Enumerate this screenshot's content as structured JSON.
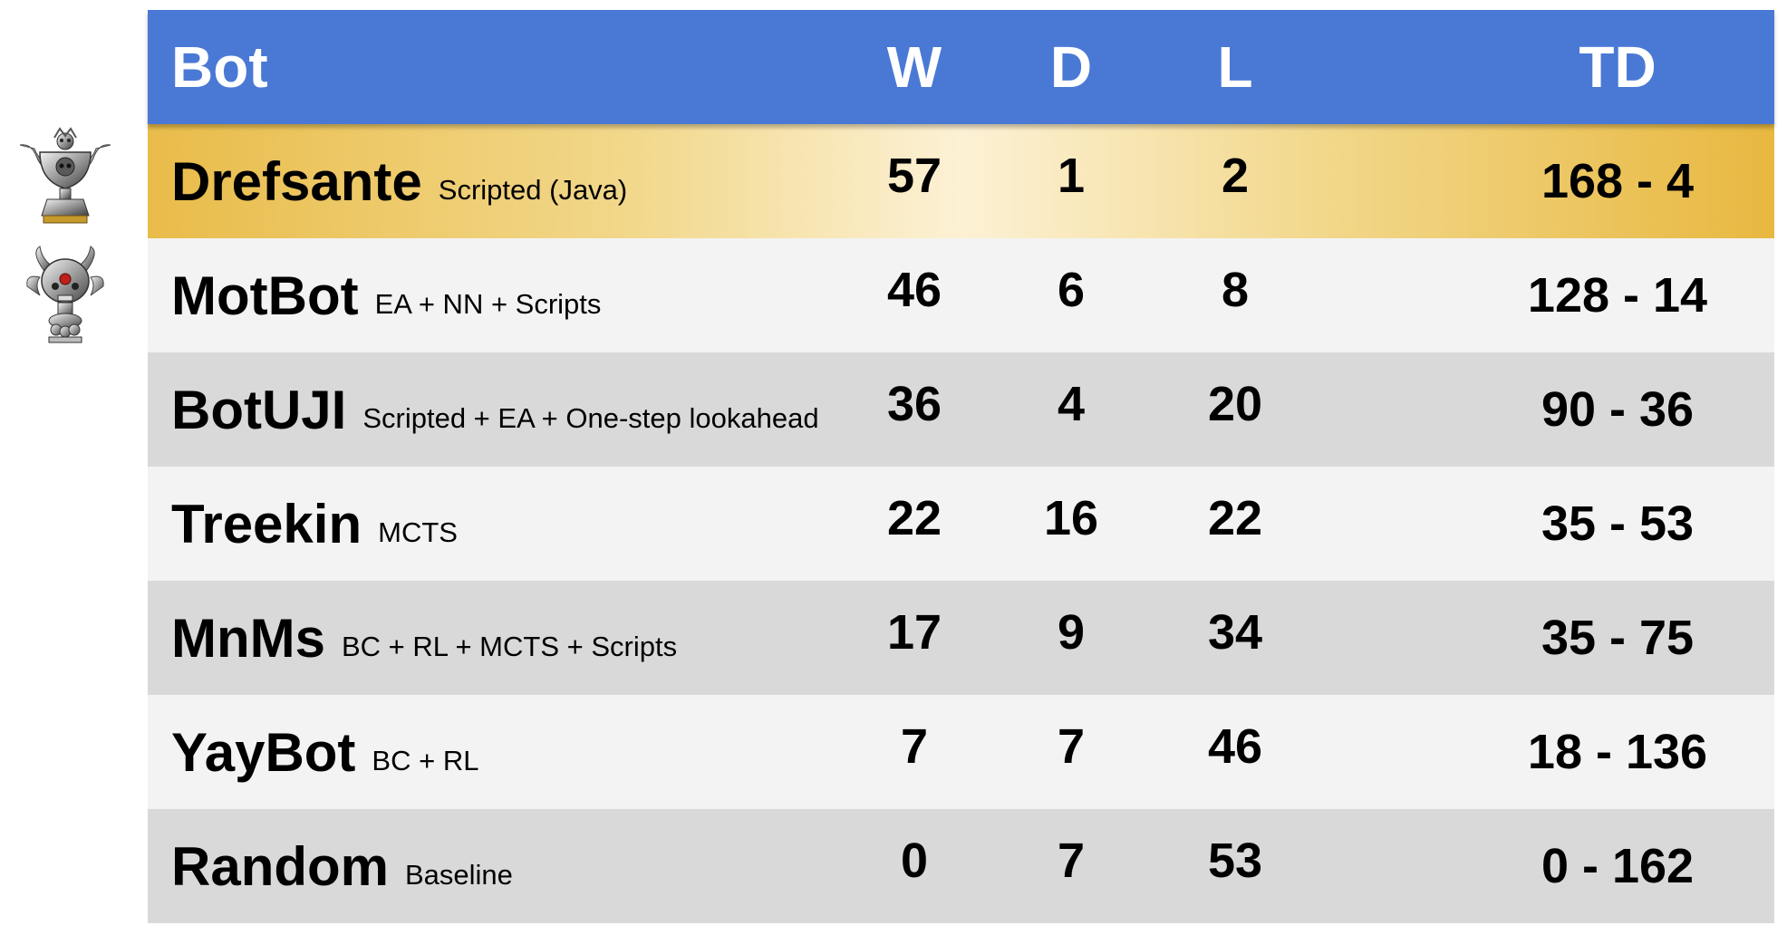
{
  "header": {
    "bot": "Bot",
    "w": "W",
    "d": "D",
    "l": "L",
    "td": "TD"
  },
  "trophies": [
    {
      "icon": "trophy-cup-icon",
      "rank": 1
    },
    {
      "icon": "skull-trophy-icon",
      "rank": 2
    }
  ],
  "rows": [
    {
      "name": "Drefsante",
      "desc": "Scripted (Java)",
      "w": "57",
      "d": "1",
      "l": "2",
      "td": "168 - 4"
    },
    {
      "name": "MotBot",
      "desc": "EA + NN + Scripts",
      "w": "46",
      "d": "6",
      "l": "8",
      "td": "128 - 14"
    },
    {
      "name": "BotUJI",
      "desc": "Scripted + EA + One-step lookahead",
      "w": "36",
      "d": "4",
      "l": "20",
      "td": "90 - 36"
    },
    {
      "name": "Treekin",
      "desc": "MCTS",
      "w": "22",
      "d": "16",
      "l": "22",
      "td": "35 - 53"
    },
    {
      "name": "MnMs",
      "desc": "BC + RL + MCTS + Scripts",
      "w": "17",
      "d": "9",
      "l": "34",
      "td": "35 - 75"
    },
    {
      "name": "YayBot",
      "desc": "BC + RL",
      "w": "7",
      "d": "7",
      "l": "46",
      "td": "18 - 136"
    },
    {
      "name": "Random",
      "desc": "Baseline",
      "w": "0",
      "d": "7",
      "l": "53",
      "td": "0 - 162"
    }
  ],
  "colors": {
    "header": "#4a79d5",
    "gold": "#e9bc4a",
    "row_light": "#f3f3f3",
    "row_dark": "#d9d9d9"
  }
}
